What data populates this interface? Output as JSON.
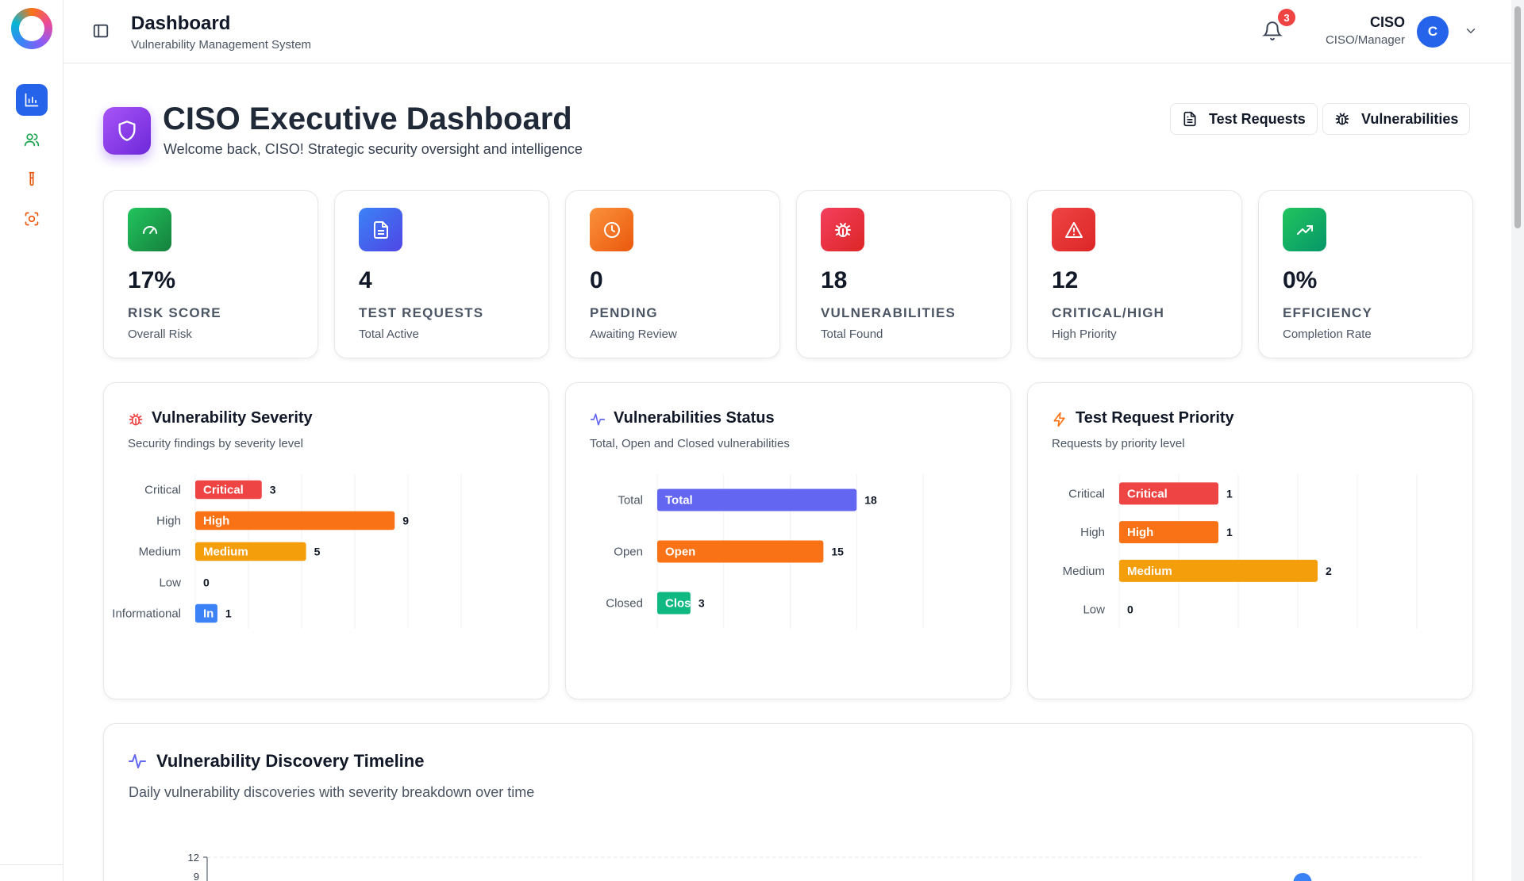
{
  "header": {
    "title": "Dashboard",
    "subtitle": "Vulnerability Management System",
    "notification_count": "3",
    "user_name": "CISO",
    "user_role": "CISO/Manager",
    "avatar_initial": "C"
  },
  "sidebar": {
    "items": [
      {
        "icon": "bar-chart-icon",
        "active": true
      },
      {
        "icon": "users-icon",
        "active": false
      },
      {
        "icon": "test-tube-icon",
        "active": false
      },
      {
        "icon": "scan-icon",
        "active": false
      }
    ]
  },
  "page": {
    "title": "CISO Executive Dashboard",
    "subtitle": "Welcome back, CISO! Strategic security oversight and intelligence",
    "buttons": {
      "test_requests": "Test Requests",
      "vulnerabilities": "Vulnerabilities"
    }
  },
  "stats": [
    {
      "value": "17%",
      "label": "RISK SCORE",
      "sub": "Overall Risk",
      "icon": "gauge-icon",
      "color": "#16a34a"
    },
    {
      "value": "4",
      "label": "TEST REQUESTS",
      "sub": "Total Active",
      "icon": "document-icon",
      "color": "#4f46e5"
    },
    {
      "value": "0",
      "label": "PENDING",
      "sub": "Awaiting Review",
      "icon": "clock-icon",
      "color": "#f97316"
    },
    {
      "value": "18",
      "label": "VULNERABILITIES",
      "sub": "Total Found",
      "icon": "bug-icon",
      "color": "#ef4444"
    },
    {
      "value": "12",
      "label": "CRITICAL/HIGH",
      "sub": "High Priority",
      "icon": "alert-triangle-icon",
      "color": "#dc2626"
    },
    {
      "value": "0%",
      "label": "EFFICIENCY",
      "sub": "Completion Rate",
      "icon": "trending-up-icon",
      "color": "#16a34a"
    }
  ],
  "charts": {
    "severity": {
      "title": "Vulnerability Severity",
      "subtitle": "Security findings by severity level"
    },
    "status": {
      "title": "Vulnerabilities Status",
      "subtitle": "Total, Open and Closed vulnerabilities"
    },
    "priority": {
      "title": "Test Request Priority",
      "subtitle": "Requests by priority level"
    }
  },
  "timeline": {
    "title": "Vulnerability Discovery Timeline",
    "subtitle": "Daily vulnerability discoveries with severity breakdown over time",
    "y_tick_top": "12",
    "y_tick_next": "9"
  },
  "chart_data": [
    {
      "type": "bar",
      "orientation": "horizontal",
      "title": "Vulnerability Severity",
      "categories": [
        "Critical",
        "High",
        "Medium",
        "Low",
        "Informational"
      ],
      "bar_labels": [
        "Critical",
        "High",
        "Medium",
        "",
        "In"
      ],
      "values": [
        3,
        9,
        5,
        0,
        1
      ],
      "colors": [
        "#ef4444",
        "#f97316",
        "#f59e0b",
        "#22c55e",
        "#3b82f6"
      ],
      "xlim": [
        0,
        12
      ]
    },
    {
      "type": "bar",
      "orientation": "horizontal",
      "title": "Vulnerabilities Status",
      "categories": [
        "Total",
        "Open",
        "Closed"
      ],
      "bar_labels": [
        "Total",
        "Open",
        "Close"
      ],
      "values": [
        18,
        15,
        3
      ],
      "colors": [
        "#6366f1",
        "#f97316",
        "#10b981"
      ],
      "xlim": [
        0,
        24
      ]
    },
    {
      "type": "bar",
      "orientation": "horizontal",
      "title": "Test Request Priority",
      "categories": [
        "Critical",
        "High",
        "Medium",
        "Low"
      ],
      "bar_labels": [
        "Critical",
        "High",
        "Medium",
        ""
      ],
      "values": [
        1,
        1,
        2,
        0
      ],
      "colors": [
        "#ef4444",
        "#f97316",
        "#f59e0b",
        "#22c55e"
      ],
      "xlim": [
        0,
        3
      ]
    }
  ]
}
